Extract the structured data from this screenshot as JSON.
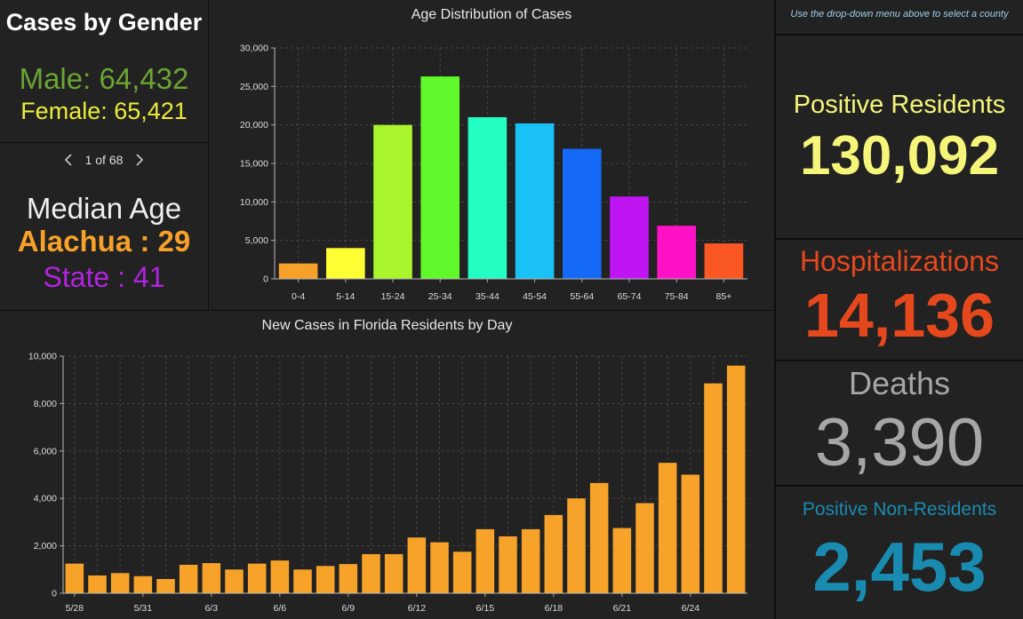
{
  "gender": {
    "title": "Cases by Gender",
    "male": "Male: 64,432",
    "female": "Female: 65,421",
    "male_color": "#6aa532",
    "female_color": "#ecec3c"
  },
  "pager": {
    "text": "1 of 68"
  },
  "median": {
    "title": "Median Age",
    "county": "Alachua : 29",
    "state": "State : 41",
    "county_color": "#f7a12a",
    "state_color": "#b223e0"
  },
  "age_chart": {
    "title": "Age Distribution of Cases",
    "chart_data": {
      "type": "bar",
      "title": "Age Distribution of Cases",
      "categories": [
        "0-4",
        "5-14",
        "15-24",
        "25-34",
        "35-44",
        "45-54",
        "55-64",
        "65-74",
        "75-84",
        "85+"
      ],
      "values": [
        2000,
        4000,
        20000,
        26300,
        21000,
        20200,
        16900,
        10700,
        6900,
        4600
      ],
      "colors": [
        "#f7a12a",
        "#ffff33",
        "#a8f52c",
        "#5ff82a",
        "#23ffc3",
        "#1ac1f7",
        "#1469f7",
        "#c014f3",
        "#ff12c5",
        "#fb5722"
      ],
      "ylim": [
        0,
        30000
      ],
      "yticks": [
        0,
        5000,
        10000,
        15000,
        20000,
        25000,
        30000
      ],
      "ytick_labels": [
        "0",
        "5,000",
        "10,000",
        "15,000",
        "20,000",
        "25,000",
        "30,000"
      ],
      "grid": true
    }
  },
  "daily_chart": {
    "title": "New Cases in Florida Residents by Day",
    "chart_data": {
      "type": "bar",
      "title": "New Cases in Florida Residents by Day",
      "x": [
        "5/28",
        "5/29",
        "5/30",
        "5/31",
        "6/1",
        "6/2",
        "6/3",
        "6/4",
        "6/5",
        "6/6",
        "6/7",
        "6/8",
        "6/9",
        "6/10",
        "6/11",
        "6/12",
        "6/13",
        "6/14",
        "6/15",
        "6/16",
        "6/17",
        "6/18",
        "6/19",
        "6/20",
        "6/21",
        "6/22",
        "6/23",
        "6/24",
        "6/25",
        "6/26"
      ],
      "values": [
        1250,
        750,
        850,
        720,
        600,
        1200,
        1270,
        1000,
        1250,
        1380,
        1000,
        1150,
        1230,
        1650,
        1650,
        2350,
        2150,
        1750,
        2700,
        2400,
        2700,
        3300,
        4000,
        4650,
        2750,
        3800,
        5500,
        5000,
        8850,
        9600
      ],
      "tick_labels": [
        "5/28",
        "",
        "",
        "5/31",
        "",
        "",
        "6/3",
        "",
        "",
        "6/6",
        "",
        "",
        "6/9",
        "",
        "",
        "6/12",
        "",
        "",
        "6/15",
        "",
        "",
        "6/18",
        "",
        "",
        "6/21",
        "",
        "",
        "6/24",
        "",
        ""
      ],
      "bar_color": "#f7a32a",
      "ylim": [
        0,
        10000
      ],
      "yticks": [
        0,
        2000,
        4000,
        6000,
        8000,
        10000
      ],
      "ytick_labels": [
        "0",
        "2,000",
        "4,000",
        "6,000",
        "8,000",
        "10,000"
      ],
      "grid": true
    }
  },
  "note": {
    "text": "Use the drop-down menu above to select a county"
  },
  "stats": {
    "positive": {
      "label": "Positive Residents",
      "value": "130,092",
      "color": "#f5f57a"
    },
    "hospitalizations": {
      "label": "Hospitalizations",
      "value": "14,136",
      "color": "#e6481d"
    },
    "deaths": {
      "label": "Deaths",
      "value": "3,390",
      "color": "#a6a6a6"
    },
    "nonresidents": {
      "label": "Positive Non-Residents",
      "value": "2,453",
      "color": "#1a8bb0"
    }
  }
}
